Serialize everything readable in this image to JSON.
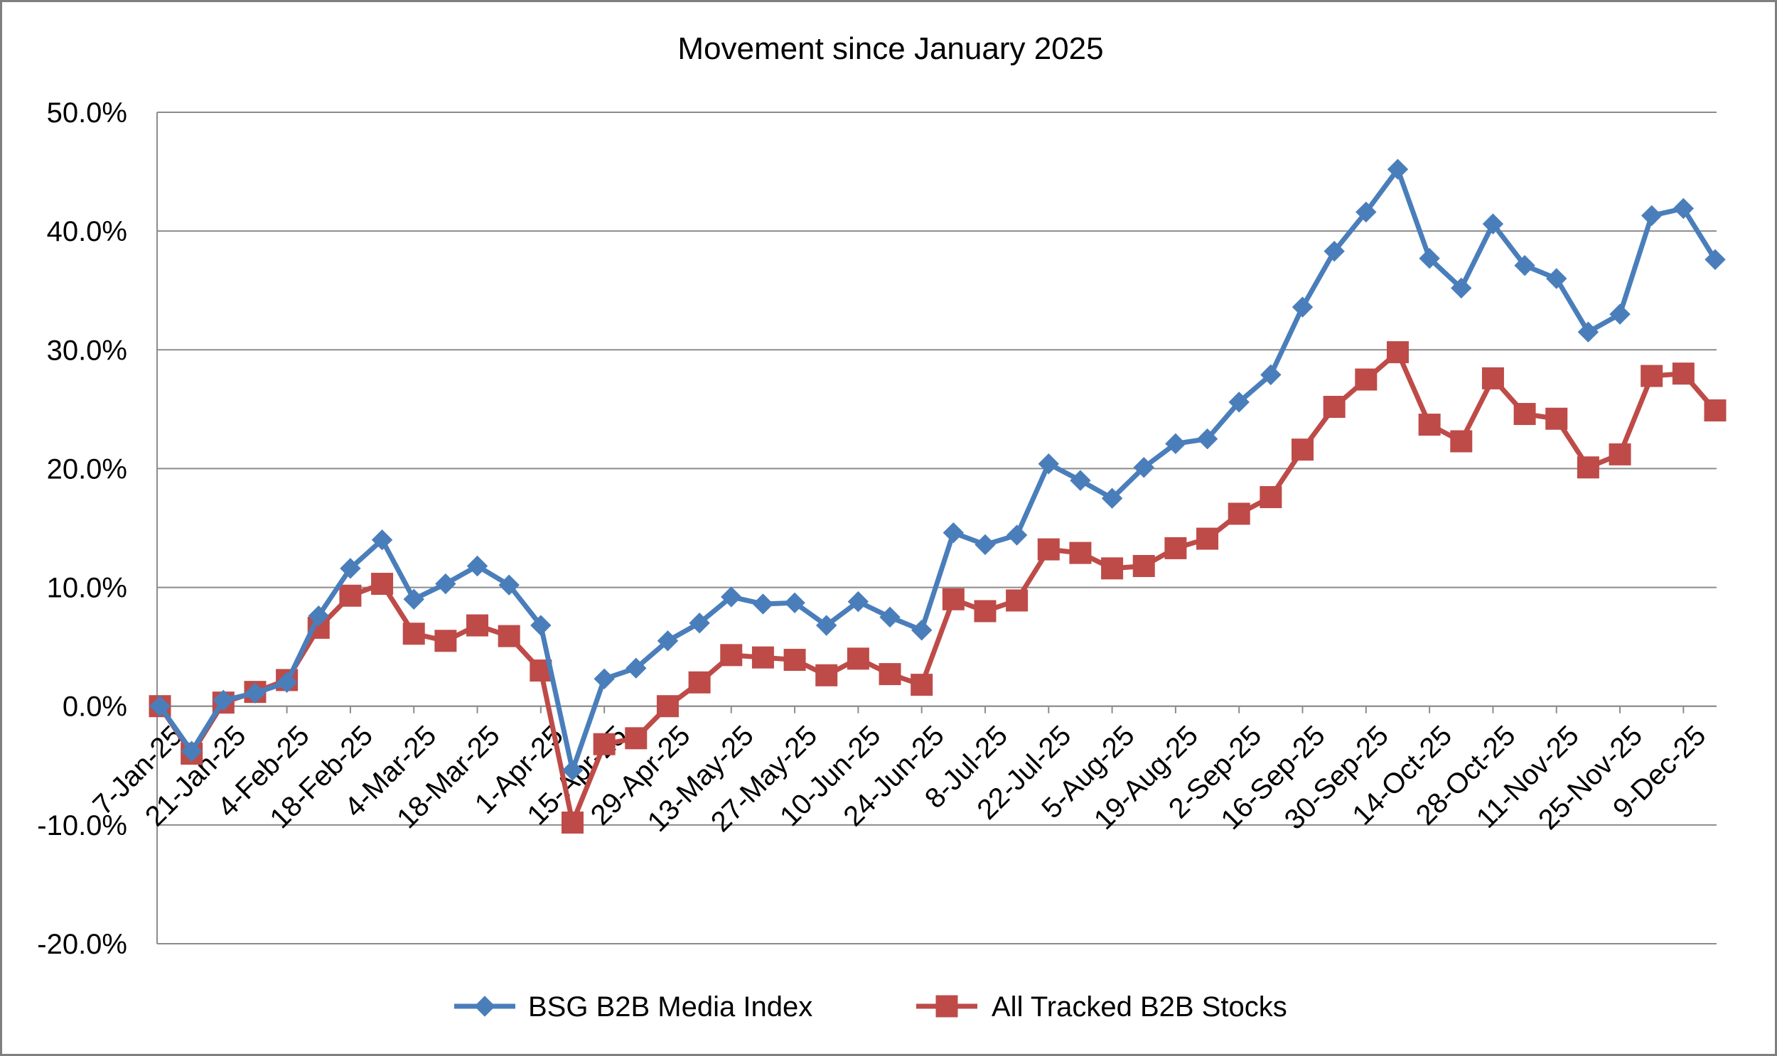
{
  "chart_data": {
    "type": "line",
    "title": "Movement since January 2025",
    "xlabel": "",
    "ylabel": "",
    "ylim": [
      -20,
      50
    ],
    "y_tick_step": 10,
    "y_tick_labels": [
      "-20.0%",
      "-10.0%",
      "0.0%",
      "10.0%",
      "20.0%",
      "30.0%",
      "40.0%",
      "50.0%"
    ],
    "grid": true,
    "legend_position": "bottom",
    "x": [
      "7-Jan-25",
      "14-Jan-25",
      "21-Jan-25",
      "28-Jan-25",
      "4-Feb-25",
      "11-Feb-25",
      "18-Feb-25",
      "25-Feb-25",
      "4-Mar-25",
      "11-Mar-25",
      "18-Mar-25",
      "25-Mar-25",
      "1-Apr-25",
      "8-Apr-25",
      "15-Apr-25",
      "22-Apr-25",
      "29-Apr-25",
      "6-May-25",
      "13-May-25",
      "20-May-25",
      "27-May-25",
      "3-Jun-25",
      "10-Jun-25",
      "17-Jun-25",
      "24-Jun-25",
      "1-Jul-25",
      "8-Jul-25",
      "15-Jul-25",
      "22-Jul-25",
      "29-Jul-25",
      "5-Aug-25",
      "12-Aug-25",
      "19-Aug-25",
      "26-Aug-25",
      "2-Sep-25",
      "9-Sep-25",
      "16-Sep-25",
      "23-Sep-25",
      "30-Sep-25",
      "7-Oct-25",
      "14-Oct-25",
      "21-Oct-25",
      "28-Oct-25",
      "4-Nov-25",
      "11-Nov-25",
      "18-Nov-25",
      "25-Nov-25",
      "2-Dec-25",
      "9-Dec-25",
      "16-Dec-25"
    ],
    "x_tick_labels": [
      "7-Jan-25",
      "21-Jan-25",
      "4-Feb-25",
      "18-Feb-25",
      "4-Mar-25",
      "18-Mar-25",
      "1-Apr-25",
      "15-Apr-25",
      "29-Apr-25",
      "13-May-25",
      "27-May-25",
      "10-Jun-25",
      "24-Jun-25",
      "8-Jul-25",
      "22-Jul-25",
      "5-Aug-25",
      "19-Aug-25",
      "2-Sep-25",
      "16-Sep-25",
      "30-Sep-25",
      "14-Oct-25",
      "28-Oct-25",
      "11-Nov-25",
      "25-Nov-25",
      "9-Dec-25"
    ],
    "series": [
      {
        "name": "BSG B2B Media Index",
        "color": "#4a7ebb",
        "marker": "diamond",
        "values": [
          0.0,
          -3.8,
          0.5,
          1.1,
          2.0,
          7.6,
          11.6,
          14.0,
          9.0,
          10.3,
          11.8,
          10.2,
          6.8,
          -5.4,
          2.3,
          3.2,
          5.5,
          7.0,
          9.2,
          8.6,
          8.7,
          6.8,
          8.8,
          7.5,
          6.4,
          14.6,
          13.6,
          14.4,
          20.4,
          19.0,
          17.5,
          20.1,
          22.1,
          22.5,
          25.6,
          27.9,
          33.6,
          38.3,
          41.6,
          45.2,
          37.7,
          35.2,
          40.6,
          37.1,
          36.0,
          31.5,
          33.0,
          41.3,
          41.9,
          37.6
        ]
      },
      {
        "name": "All Tracked B2B Stocks",
        "color": "#be4b48",
        "marker": "square",
        "values": [
          0.0,
          -4.0,
          0.3,
          1.2,
          2.2,
          6.6,
          9.3,
          10.3,
          6.1,
          5.5,
          6.8,
          5.9,
          3.0,
          -9.8,
          -3.2,
          -2.7,
          0.0,
          2.0,
          4.3,
          4.1,
          3.9,
          2.6,
          4.0,
          2.7,
          1.8,
          9.0,
          8.0,
          8.9,
          13.2,
          12.9,
          11.6,
          11.8,
          13.3,
          14.1,
          16.2,
          17.6,
          21.6,
          25.2,
          27.5,
          29.8,
          23.7,
          22.3,
          27.6,
          24.6,
          24.2,
          20.1,
          21.2,
          27.8,
          28.0,
          24.9
        ]
      }
    ]
  }
}
